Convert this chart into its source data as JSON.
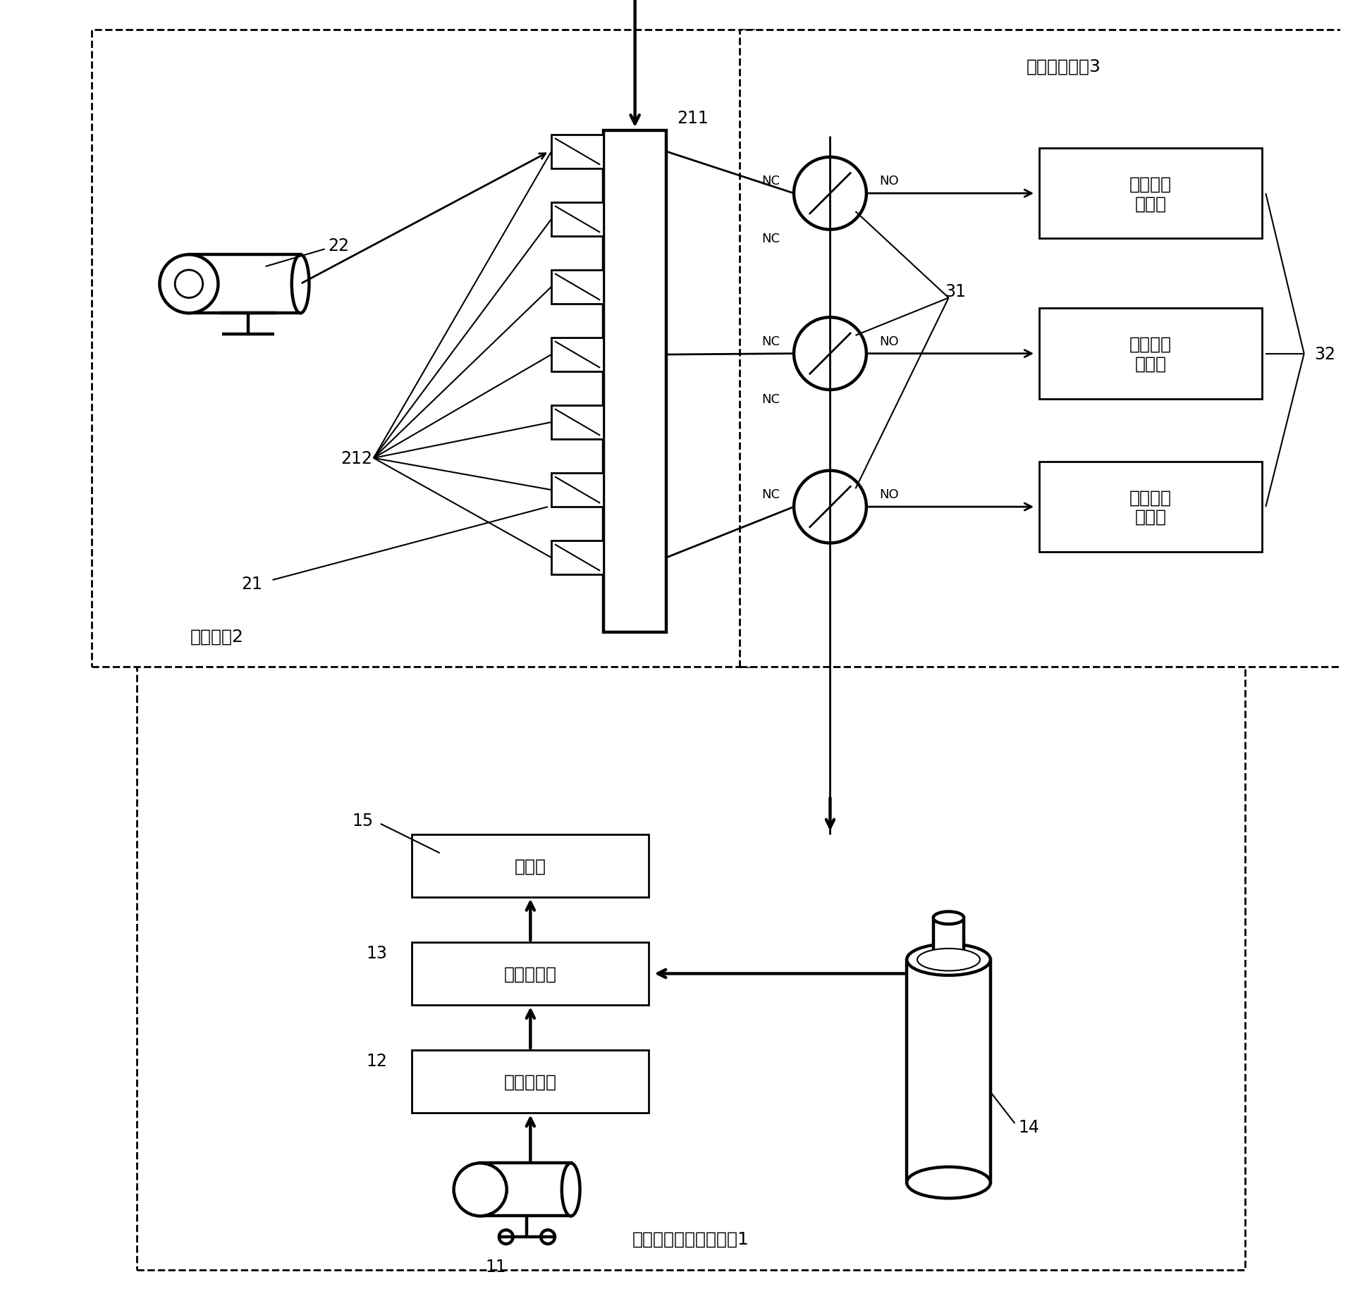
{
  "bg_color": "#ffffff",
  "lc": "#000000",
  "system1_label": "标定用标准气配气系统1",
  "system2_label": "采样系统2",
  "system3_label": "标定气路系统3",
  "box_hunhecang": "混合仓",
  "box_biaodingpeiqi": "标定配气价",
  "box_lingqifashengqi": "零气发生器",
  "box_so2": "二氧化硫\n分析仪",
  "box_nox": "氮氧化物\n分析仪",
  "box_co": "一氧化碳\n分析仪",
  "label_11": "11",
  "label_12": "12",
  "label_13": "13",
  "label_14": "14",
  "label_15": "15",
  "label_21": "21",
  "label_22": "22",
  "label_31": "31",
  "label_32": "32",
  "label_211": "211",
  "label_212": "212",
  "nc": "NC",
  "no": "NO"
}
